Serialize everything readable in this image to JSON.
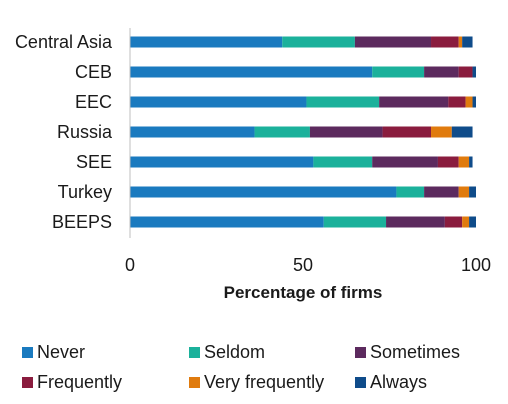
{
  "chart_data": {
    "type": "bar",
    "orientation": "horizontal",
    "stacked": true,
    "categories": [
      "Central Asia",
      "CEB",
      "EEC",
      "Russia",
      "SEE",
      "Turkey",
      "BEEPS"
    ],
    "series": [
      {
        "name": "Never",
        "color": "#1a7abf",
        "values": [
          44,
          70,
          51,
          36,
          53,
          77,
          56
        ]
      },
      {
        "name": "Seldom",
        "color": "#1bb19b",
        "values": [
          21,
          15,
          21,
          16,
          17,
          8,
          18
        ]
      },
      {
        "name": "Sometimes",
        "color": "#5c2a5e",
        "values": [
          22,
          10,
          20,
          21,
          19,
          10,
          17
        ]
      },
      {
        "name": "Frequently",
        "color": "#8a1c3e",
        "values": [
          8,
          4,
          5,
          14,
          6,
          0,
          5
        ]
      },
      {
        "name": "Very frequently",
        "color": "#e07b0e",
        "values": [
          1,
          0,
          2,
          6,
          3,
          3,
          2
        ]
      },
      {
        "name": "Always",
        "color": "#0f4c8a",
        "values": [
          3,
          1,
          1,
          6,
          1,
          2,
          2
        ]
      }
    ],
    "xlabel": "Percentage of firms",
    "xlim": [
      0,
      100
    ],
    "xticks": [
      "0",
      "50",
      "100"
    ],
    "grid": false,
    "legend_position": "bottom"
  }
}
